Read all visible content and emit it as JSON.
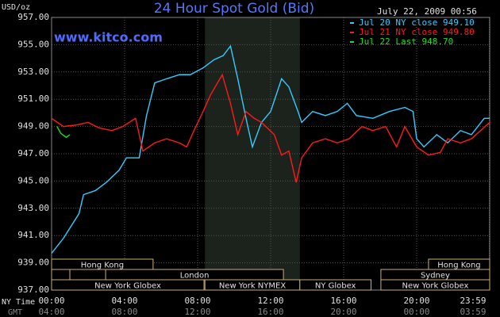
{
  "chart_data": {
    "type": "line",
    "title": "24 Hour Spot Gold (Bid)",
    "site": "www.kitco.com",
    "timestamp": "July 22, 2009 00:56",
    "y_label": "USD/oz",
    "x_label": "NY Time",
    "x2_label": "GMT",
    "ylim": [
      937,
      957
    ],
    "yticks": [
      {
        "value": 937,
        "label": "937.00"
      },
      {
        "value": 939,
        "label": "939.00"
      },
      {
        "value": 941,
        "label": "941.00"
      },
      {
        "value": 943,
        "label": "943.00"
      },
      {
        "value": 945,
        "label": "945.00"
      },
      {
        "value": 947,
        "label": "947.00"
      },
      {
        "value": 949,
        "label": "949.00"
      },
      {
        "value": 951,
        "label": "951.00"
      },
      {
        "value": 953,
        "label": "953.00"
      },
      {
        "value": 955,
        "label": "955.00"
      },
      {
        "value": 957,
        "label": "957.00"
      }
    ],
    "xlim": [
      0,
      24
    ],
    "xticks": [
      {
        "value": 0,
        "label": "00:00"
      },
      {
        "value": 4,
        "label": "04:00"
      },
      {
        "value": 8,
        "label": "08:00"
      },
      {
        "value": 12,
        "label": "12:00"
      },
      {
        "value": 16,
        "label": "16:00"
      },
      {
        "value": 20,
        "label": "20:00"
      },
      {
        "value": 23.98,
        "label": "23:59"
      }
    ],
    "x2tick_labels": [
      "04:00",
      "08:00",
      "12:00",
      "16:00",
      "20:00",
      "00:00",
      "03:59"
    ],
    "grid": true,
    "legend": "top-right",
    "shaded": [
      8.4,
      13.6
    ],
    "sessions": [
      {
        "label": "Hong Kong",
        "row": 0,
        "start": 0,
        "end": 5.56
      },
      {
        "label": "Hong Kong",
        "row": 0,
        "start": 20.65,
        "end": 24
      },
      {
        "label": null,
        "row": 1,
        "start": 0,
        "end": 1.0
      },
      {
        "label": "London",
        "row": 1,
        "start": 2.96,
        "end": 12.7
      },
      {
        "label": "Sydney",
        "row": 1,
        "start": 18.04,
        "end": 24
      },
      {
        "label": "New York Globex",
        "row": 2,
        "start": 0,
        "end": 8.35
      },
      {
        "label": "New York NYMEX",
        "row": 2,
        "start": 8.4,
        "end": 13.6
      },
      {
        "label": "NY Globex",
        "row": 2,
        "start": 13.6,
        "end": 17.5
      },
      {
        "label": "New York Globex",
        "row": 2,
        "start": 18.04,
        "end": 24
      }
    ],
    "series": [
      {
        "name": "Jul 20 NY close 949.10",
        "color": "#33ccff",
        "x": [
          0,
          0.65,
          1.5,
          1.75,
          2.4,
          3,
          3.7,
          4.1,
          4.8,
          5.2,
          5.65,
          6.3,
          7,
          7.6,
          8.3,
          8.9,
          9.4,
          9.8,
          10.2,
          10.65,
          11,
          11.5,
          12,
          12.6,
          13,
          13.5,
          13.7,
          14.3,
          15,
          15.65,
          16.2,
          16.7,
          17.6,
          18.5,
          19.35,
          19.8,
          20,
          20.4,
          21.1,
          21.7,
          22.4,
          23,
          23.7,
          24
        ],
        "values": [
          939.7,
          940.8,
          942.6,
          944.0,
          944.3,
          944.9,
          945.8,
          946.7,
          946.7,
          949.8,
          952.2,
          952.5,
          952.8,
          952.8,
          953.3,
          953.9,
          954.2,
          954.9,
          952.5,
          949.6,
          947.5,
          949.3,
          950.1,
          952.5,
          951.9,
          950.1,
          949.3,
          950.1,
          949.8,
          950.1,
          950.7,
          949.8,
          949.6,
          950.1,
          950.4,
          950.1,
          948.1,
          947.5,
          948.4,
          947.8,
          948.7,
          948.4,
          949.6,
          949.6
        ]
      },
      {
        "name": "Jul 21 NY close 949.80",
        "color": "#ff1a1a",
        "x": [
          0,
          0.65,
          1.3,
          2,
          2.6,
          3.3,
          3.9,
          4.6,
          5,
          5.65,
          6.3,
          7,
          7.4,
          7.8,
          8.3,
          8.7,
          9.35,
          9.8,
          10.2,
          10.65,
          11.1,
          11.5,
          12.2,
          12.6,
          13,
          13.4,
          13.7,
          14.3,
          15,
          15.65,
          16.3,
          17,
          17.6,
          18.3,
          18.9,
          19.35,
          20,
          20.65,
          21.3,
          21.7,
          22.4,
          23,
          23.5,
          24
        ],
        "values": [
          949.6,
          949.0,
          949.1,
          949.3,
          948.9,
          948.7,
          949.0,
          949.6,
          947.2,
          947.8,
          948.1,
          947.8,
          947.5,
          948.7,
          950.1,
          951.3,
          952.8,
          950.7,
          948.4,
          950.1,
          949.6,
          949.3,
          948.4,
          946.9,
          947.2,
          944.9,
          946.7,
          947.8,
          948.1,
          947.8,
          948.1,
          949.0,
          948.7,
          949.0,
          947.5,
          949.0,
          947.5,
          946.9,
          947.1,
          948.1,
          947.8,
          948.1,
          948.7,
          949.3
        ]
      },
      {
        "name": "Jul 22 Last 948.70",
        "color": "#22dd22",
        "x": [
          0.3,
          0.5,
          0.8,
          1.0
        ],
        "values": [
          949.0,
          948.5,
          948.2,
          948.4
        ]
      }
    ]
  }
}
